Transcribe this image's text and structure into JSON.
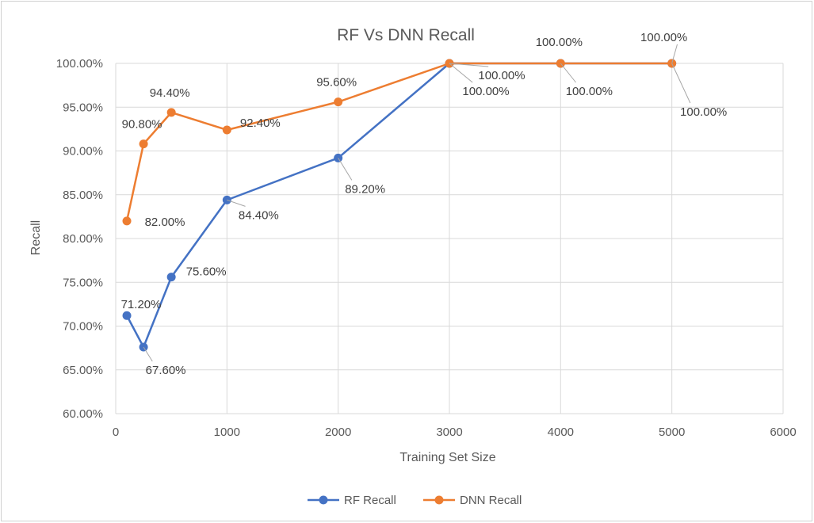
{
  "chart_data": {
    "type": "line",
    "title": "RF Vs DNN Recall",
    "xlabel": "Training Set Size",
    "ylabel": "Recall",
    "xlim": [
      0,
      6000
    ],
    "ylim": [
      60,
      100
    ],
    "x_ticks": [
      "0",
      "1000",
      "2000",
      "3000",
      "4000",
      "5000",
      "6000"
    ],
    "y_ticks": [
      "60.00%",
      "65.00%",
      "70.00%",
      "75.00%",
      "80.00%",
      "85.00%",
      "90.00%",
      "95.00%",
      "100.00%"
    ],
    "grid": true,
    "legend_position": "bottom",
    "series": [
      {
        "name": "RF Recall",
        "color": "#4472c4",
        "points": [
          {
            "x": 100,
            "y": 71.2,
            "label": "71.20%"
          },
          {
            "x": 250,
            "y": 67.6,
            "label": "67.60%"
          },
          {
            "x": 500,
            "y": 75.6,
            "label": "75.60%"
          },
          {
            "x": 1000,
            "y": 84.4,
            "label": "84.40%"
          },
          {
            "x": 2000,
            "y": 89.2,
            "label": "89.20%"
          },
          {
            "x": 3000,
            "y": 100.0,
            "label": "100.00%"
          },
          {
            "x": 4000,
            "y": 100.0,
            "label": "100.00%"
          },
          {
            "x": 5000,
            "y": 100.0,
            "label": "100.00%"
          }
        ]
      },
      {
        "name": "DNN Recall",
        "color": "#ed7d31",
        "points": [
          {
            "x": 100,
            "y": 82.0,
            "label": "82.00%"
          },
          {
            "x": 250,
            "y": 90.8,
            "label": "90.80%"
          },
          {
            "x": 500,
            "y": 94.4,
            "label": "94.40%"
          },
          {
            "x": 1000,
            "y": 92.4,
            "label": "92.40%"
          },
          {
            "x": 2000,
            "y": 95.6,
            "label": "95.60%"
          },
          {
            "x": 3000,
            "y": 100.0,
            "label": "100.00%"
          },
          {
            "x": 4000,
            "y": 100.0,
            "label": "100.00%"
          },
          {
            "x": 5000,
            "y": 100.0,
            "label": "100.00%"
          }
        ]
      }
    ]
  }
}
